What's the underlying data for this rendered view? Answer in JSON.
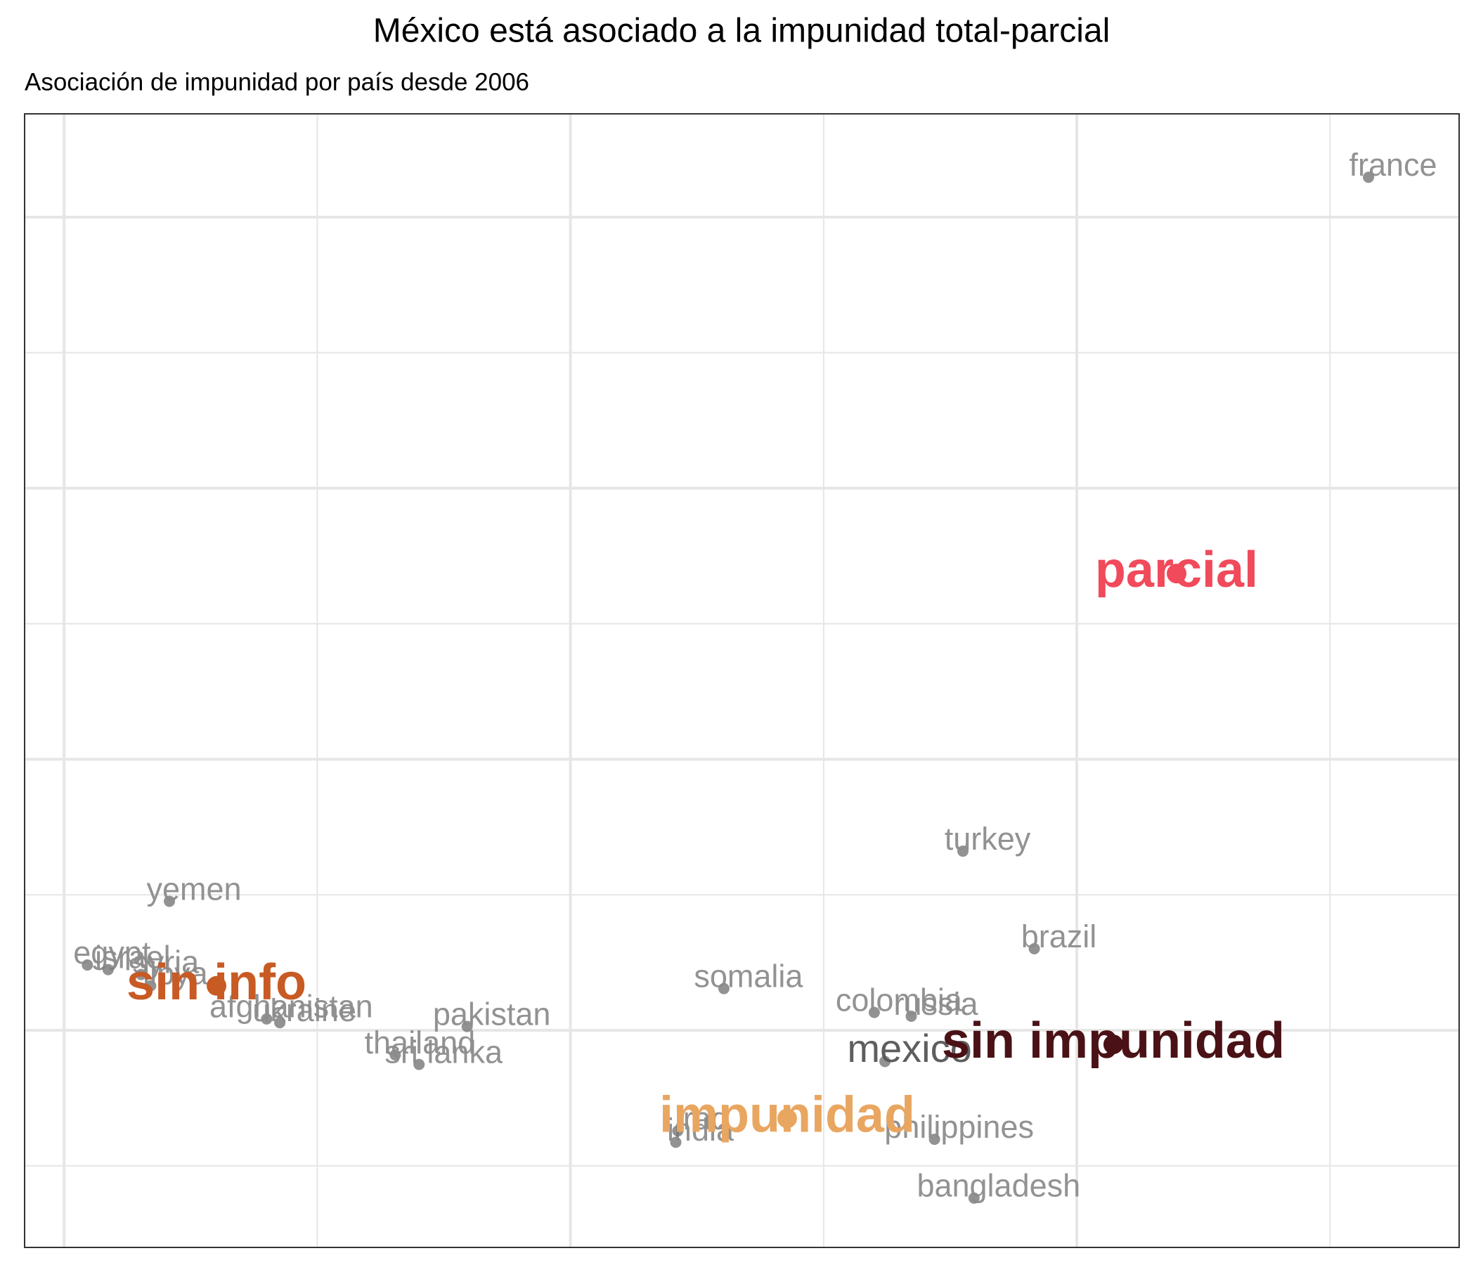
{
  "chart_data": {
    "type": "scatter",
    "title": "México está asociado a la impunidad total-parcial",
    "subtitle": "Asociación de impunidad por país desde 2006",
    "xlim": [
      -1.078,
      1.755
    ],
    "ylim": [
      -0.801,
      3.381
    ],
    "xticks": [
      -1,
      -0.5,
      0,
      0.5,
      1,
      1.5
    ],
    "yticks": [
      -0.5,
      0,
      0.5,
      1,
      1.5,
      2,
      2.5,
      3
    ],
    "grid": true,
    "series": [
      {
        "color": "#777777",
        "label_color": "#8c8c8c",
        "bold": false,
        "labels": [
          "france",
          "turkey",
          "brazil",
          "somalia",
          "colombia",
          "russia",
          "philippines",
          "bangladesh",
          "india",
          "iraq",
          "pakistan",
          "thailand",
          "sri lanka",
          "afghanistan",
          "ukraine",
          "yemen",
          "egypt",
          "israel",
          "syria",
          "libya"
        ],
        "x": [
          1.576,
          0.775,
          0.916,
          0.303,
          0.6,
          0.673,
          0.719,
          0.797,
          0.208,
          0.212,
          -0.204,
          -0.346,
          -0.299,
          -0.6,
          -0.574,
          -0.792,
          -0.954,
          -0.913,
          -0.848,
          -0.829
        ],
        "y": [
          3.147,
          0.661,
          0.301,
          0.154,
          0.066,
          0.052,
          -0.402,
          -0.619,
          -0.413,
          -0.371,
          0.014,
          -0.091,
          -0.126,
          0.042,
          0.028,
          0.476,
          0.241,
          0.224,
          0.206,
          0.164
        ]
      },
      {
        "color": "#777777",
        "label_color": "#555555",
        "bold": false,
        "labels": [
          "mexico"
        ],
        "x": [
          0.621
        ],
        "y": [
          -0.115
        ]
      },
      {
        "color": [
          "#f04a5b",
          "#4a1216",
          "#e9a660",
          "#c85a24"
        ],
        "bold": true,
        "labels": [
          "parcial",
          "sin impunidad",
          "impunidad",
          "sin info"
        ],
        "x": [
          1.197,
          1.072,
          0.428,
          -0.699
        ],
        "y": [
          1.685,
          -0.052,
          -0.325,
          0.164
        ]
      }
    ]
  }
}
